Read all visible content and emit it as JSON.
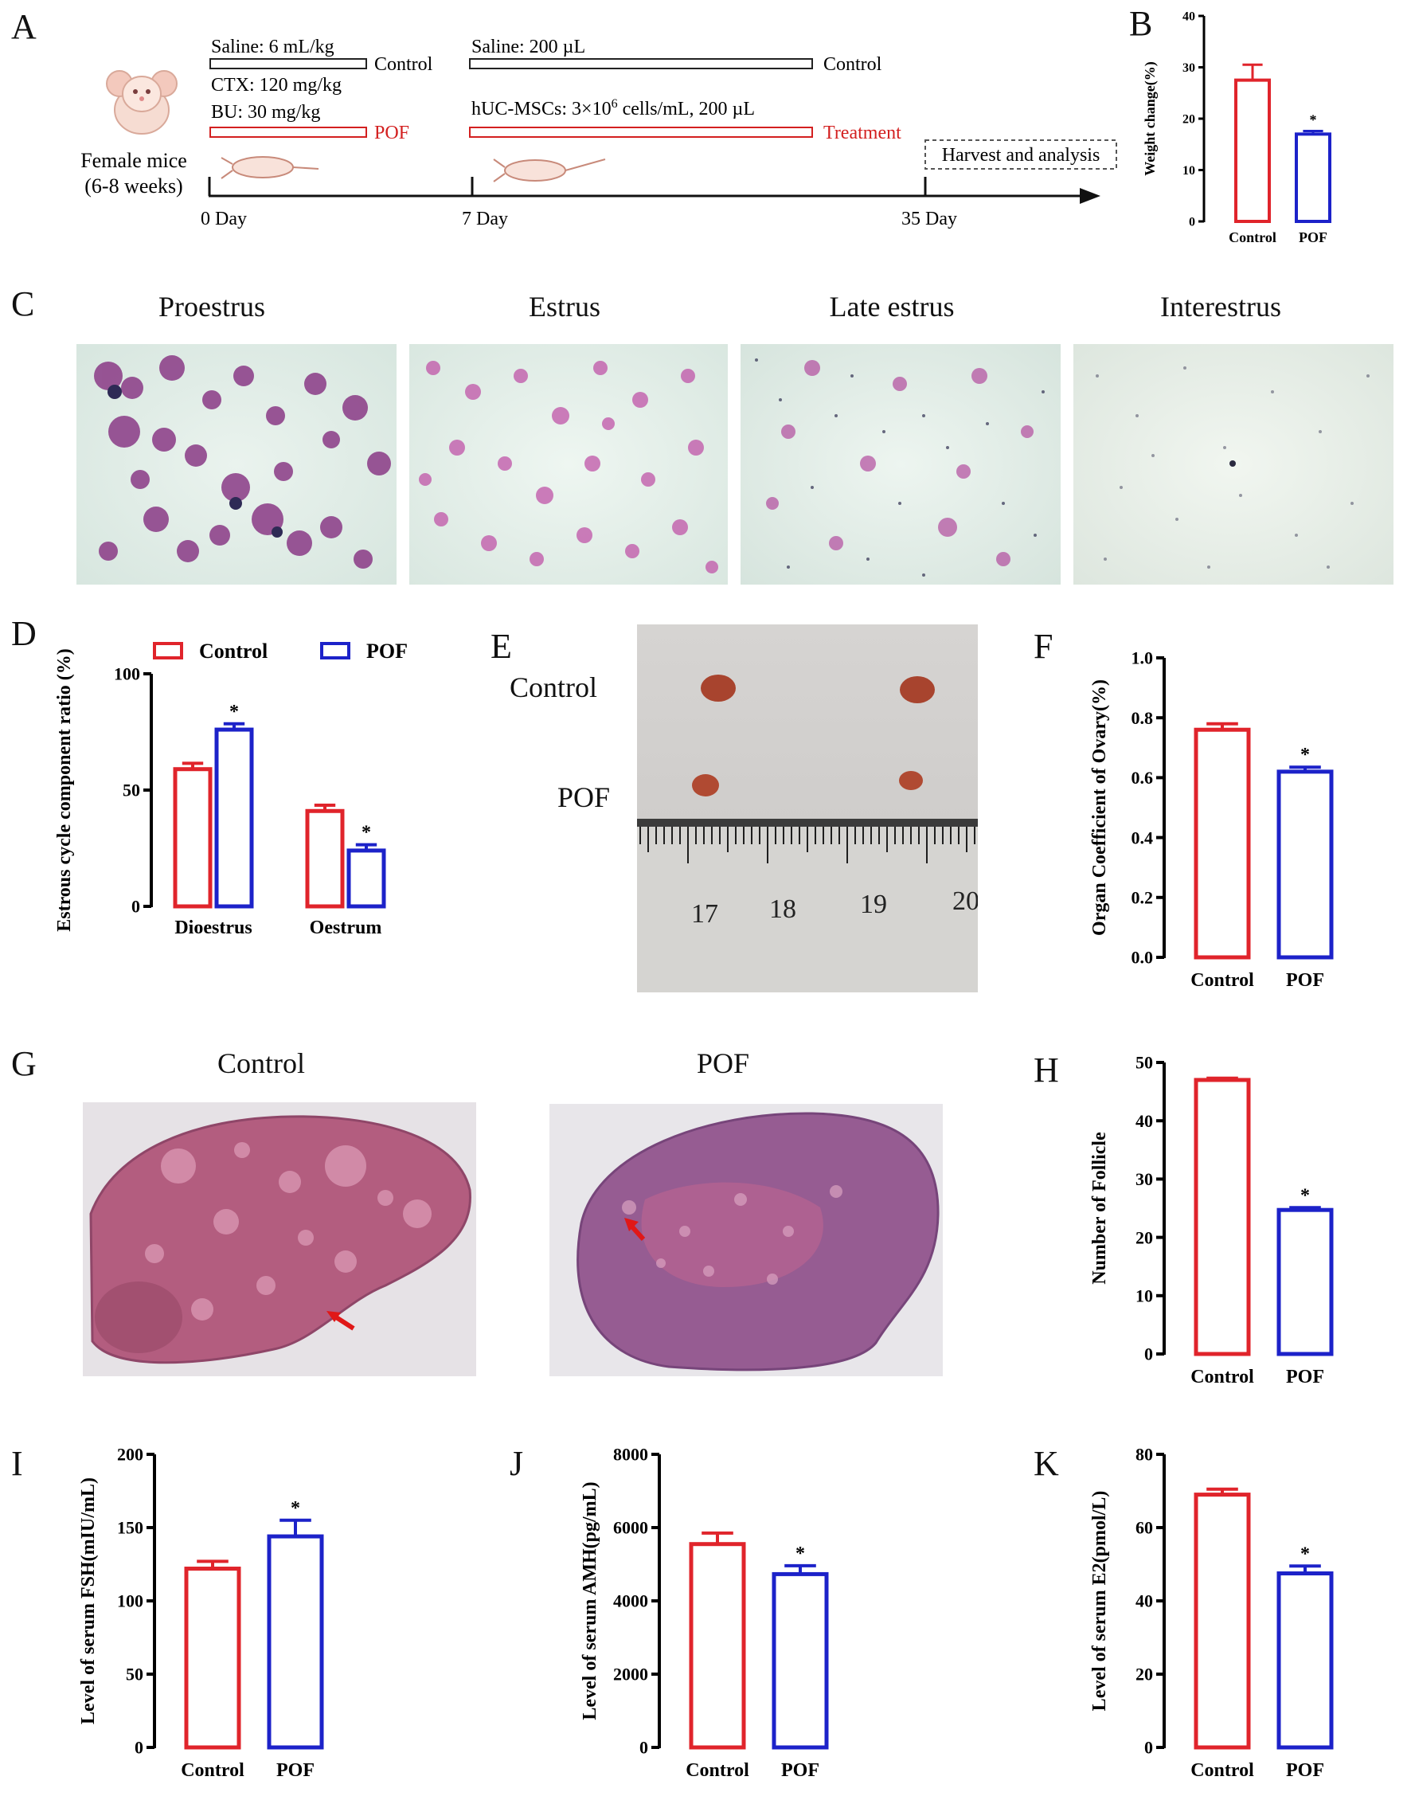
{
  "panels": {
    "A": "A",
    "B": "B",
    "C": "C",
    "D": "D",
    "E": "E",
    "F": "F",
    "G": "G",
    "H": "H",
    "I": "I",
    "J": "J",
    "K": "K"
  },
  "schematic": {
    "saline1": "Saline: 6 mL/kg",
    "control1": "Control",
    "ctx": "CTX: 120 mg/kg",
    "bu": "BU: 30 mg/kg",
    "pof": "POF",
    "mice_line1": "Female mice",
    "mice_line2": "(6-8 weeks)",
    "saline2": "Saline: 200 µL",
    "control2": "Control",
    "hucmsc_pre": "hUC-MSCs: 3×10",
    "hucmsc_exp": "6",
    "hucmsc_post": " cells/mL, 200 µL",
    "treatment": "Treatment",
    "harvest": "Harvest and analysis",
    "day0": "0 Day",
    "day7": "7 Day",
    "day35": "35 Day"
  },
  "stages": [
    "Proestrus",
    "Estrus",
    "Late estrus",
    "Interestrus"
  ],
  "photo_E": {
    "control": "Control",
    "pof": "POF",
    "ruler": [
      "17",
      "18",
      "19",
      "20"
    ]
  },
  "histology": {
    "control": "Control",
    "pof": "POF"
  },
  "colors": {
    "control": "#e0242b",
    "pof": "#1c22c9",
    "axis": "#000000"
  },
  "chart_data": [
    {
      "panel": "B",
      "type": "bar",
      "categories": [
        "Control",
        "POF"
      ],
      "values": [
        27.5,
        17
      ],
      "errors": [
        3,
        0.6
      ],
      "significant": [
        false,
        true
      ],
      "ylabel": "Weight change(%)",
      "ylim": [
        0,
        40
      ],
      "yticks": [
        0,
        10,
        20,
        30,
        40
      ]
    },
    {
      "panel": "D",
      "type": "bar",
      "categories": [
        "Dioestrus",
        "Oestrum"
      ],
      "series": [
        {
          "name": "Control",
          "values": [
            59,
            41
          ],
          "errors": [
            2.5,
            2.5
          ]
        },
        {
          "name": "POF",
          "values": [
            76,
            24
          ],
          "errors": [
            2.5,
            2.5
          ]
        }
      ],
      "significant": [
        true,
        true
      ],
      "legend": "top",
      "ylabel": "Estrous cycle component ratio (%)",
      "ylim": [
        0,
        100
      ],
      "yticks": [
        0,
        50,
        100
      ]
    },
    {
      "panel": "F",
      "type": "bar",
      "categories": [
        "Control",
        "POF"
      ],
      "values": [
        0.76,
        0.62
      ],
      "errors": [
        0.02,
        0.015
      ],
      "significant": [
        false,
        true
      ],
      "ylabel": "Organ Coefficient of Ovary(%)",
      "ylim": [
        0,
        1.0
      ],
      "yticks": [
        "0.0",
        "0.2",
        "0.4",
        "0.6",
        "0.8",
        "1.0"
      ]
    },
    {
      "panel": "H",
      "type": "bar",
      "categories": [
        "Control",
        "POF"
      ],
      "values": [
        47,
        24.7
      ],
      "errors": [
        0.3,
        0.4
      ],
      "significant": [
        false,
        true
      ],
      "ylabel": "Number of  Follicle",
      "ylim": [
        0,
        50
      ],
      "yticks": [
        0,
        10,
        20,
        30,
        40,
        50
      ]
    },
    {
      "panel": "I",
      "type": "bar",
      "categories": [
        "Control",
        "POF"
      ],
      "values": [
        122,
        144
      ],
      "errors": [
        5,
        11
      ],
      "significant": [
        false,
        true
      ],
      "ylabel": "Level of serum FSH(mIU/mL)",
      "ylim": [
        0,
        200
      ],
      "yticks": [
        0,
        50,
        100,
        150,
        200
      ]
    },
    {
      "panel": "J",
      "type": "bar",
      "categories": [
        "Control",
        "POF"
      ],
      "values": [
        5550,
        4730
      ],
      "errors": [
        300,
        230
      ],
      "significant": [
        false,
        true
      ],
      "ylabel": "Level of serum AMH(pg/mL)",
      "ylim": [
        0,
        8000
      ],
      "yticks": [
        0,
        2000,
        4000,
        6000,
        8000
      ]
    },
    {
      "panel": "K",
      "type": "bar",
      "categories": [
        "Control",
        "POF"
      ],
      "values": [
        69,
        47.5
      ],
      "errors": [
        1.5,
        2
      ],
      "significant": [
        false,
        true
      ],
      "ylabel": "Level of serum E2(pmol/L)",
      "ylim": [
        0,
        80
      ],
      "yticks": [
        0,
        20,
        40,
        60,
        80
      ]
    }
  ]
}
